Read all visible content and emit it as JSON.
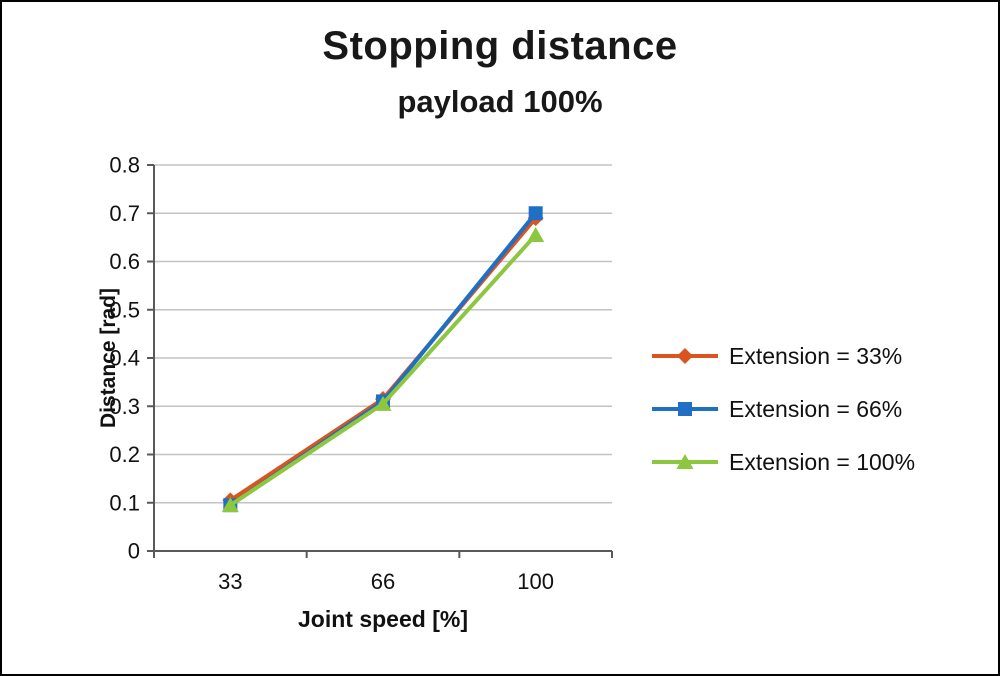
{
  "chart_data": {
    "type": "line",
    "title": "Stopping distance",
    "subtitle": "payload 100%",
    "xlabel": "Joint speed [%]",
    "ylabel": "Distance [rad]",
    "categories": [
      "33",
      "66",
      "100"
    ],
    "ylim": [
      0,
      0.8
    ],
    "ytick_step": 0.1,
    "ytick_labels": [
      "0",
      "0.1",
      "0.2",
      "0.3",
      "0.4",
      "0.5",
      "0.6",
      "0.7",
      "0.8"
    ],
    "grid": "horizontal",
    "legend_position": "right",
    "series": [
      {
        "name": "Extension = 33%",
        "color": "#d9541e",
        "marker": "diamond",
        "values": [
          0.105,
          0.315,
          0.69
        ]
      },
      {
        "name": "Extension = 66%",
        "color": "#1f6fc5",
        "marker": "square",
        "values": [
          0.095,
          0.31,
          0.7
        ]
      },
      {
        "name": "Extension = 100%",
        "color": "#8dc63f",
        "marker": "triangle",
        "values": [
          0.095,
          0.305,
          0.655
        ]
      }
    ]
  }
}
